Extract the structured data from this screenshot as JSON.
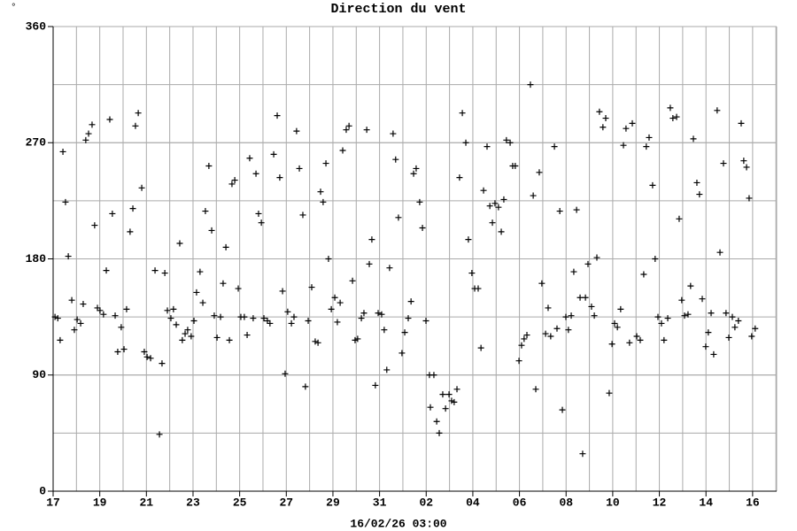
{
  "chart_data": {
    "type": "scatter",
    "title": "Direction du vent",
    "corner_symbol": "°",
    "xlabel": "16/02/26 03:00",
    "color": "#000000",
    "marker": "+",
    "grid": true,
    "x_minor_step": 1,
    "y_minor_step": 45,
    "xlim": [
      0,
      31.03
    ],
    "ylim": [
      0,
      360
    ],
    "xticks": [
      {
        "value": 0,
        "label": "17"
      },
      {
        "value": 2,
        "label": "19"
      },
      {
        "value": 4,
        "label": "21"
      },
      {
        "value": 6,
        "label": "23"
      },
      {
        "value": 8,
        "label": "25"
      },
      {
        "value": 10,
        "label": "27"
      },
      {
        "value": 12,
        "label": "29"
      },
      {
        "value": 14,
        "label": "31"
      },
      {
        "value": 16,
        "label": "02"
      },
      {
        "value": 18,
        "label": "04"
      },
      {
        "value": 20,
        "label": "06"
      },
      {
        "value": 22,
        "label": "08"
      },
      {
        "value": 24,
        "label": "10"
      },
      {
        "value": 26,
        "label": "12"
      },
      {
        "value": 28,
        "label": "14"
      },
      {
        "value": 30,
        "label": "16"
      }
    ],
    "yticks": [
      0,
      90,
      180,
      270,
      360
    ],
    "x": [
      0.08,
      0.2,
      0.3,
      0.42,
      0.53,
      0.65,
      0.8,
      0.91,
      1.03,
      1.18,
      1.29,
      1.4,
      1.52,
      1.67,
      1.78,
      1.9,
      2.01,
      2.16,
      2.28,
      2.43,
      2.54,
      2.66,
      2.77,
      2.92,
      3.04,
      3.15,
      3.3,
      3.42,
      3.53,
      3.65,
      3.8,
      3.91,
      4.03,
      4.18,
      4.37,
      4.56,
      4.67,
      4.79,
      4.9,
      5.05,
      5.16,
      5.28,
      5.43,
      5.54,
      5.66,
      5.77,
      5.92,
      6.04,
      6.15,
      6.3,
      6.42,
      6.53,
      6.68,
      6.8,
      6.91,
      7.03,
      7.18,
      7.29,
      7.41,
      7.56,
      7.67,
      7.79,
      7.94,
      8.05,
      8.2,
      8.32,
      8.43,
      8.58,
      8.7,
      8.81,
      8.93,
      9.04,
      9.19,
      9.3,
      9.46,
      9.61,
      9.72,
      9.84,
      9.95,
      10.06,
      10.22,
      10.33,
      10.44,
      10.56,
      10.71,
      10.82,
      10.94,
      11.09,
      11.24,
      11.36,
      11.47,
      11.58,
      11.7,
      11.81,
      11.93,
      12.08,
      12.19,
      12.31,
      12.42,
      12.57,
      12.69,
      12.84,
      12.95,
      13.06,
      13.22,
      13.33,
      13.45,
      13.56,
      13.67,
      13.82,
      13.94,
      14.09,
      14.2,
      14.31,
      14.43,
      14.58,
      14.69,
      14.81,
      14.96,
      15.08,
      15.23,
      15.35,
      15.46,
      15.57,
      15.72,
      15.84,
      15.99,
      16.14,
      16.18,
      16.33,
      16.45,
      16.56,
      16.71,
      16.83,
      16.98,
      17.09,
      17.2,
      17.32,
      17.43,
      17.55,
      17.7,
      17.81,
      17.96,
      18.08,
      18.23,
      18.35,
      18.46,
      18.61,
      18.73,
      18.84,
      18.95,
      19.1,
      19.22,
      19.33,
      19.44,
      19.6,
      19.71,
      19.82,
      19.98,
      20.09,
      20.2,
      20.32,
      20.47,
      20.59,
      20.7,
      20.85,
      20.96,
      21.12,
      21.23,
      21.34,
      21.5,
      21.61,
      21.73,
      21.84,
      21.99,
      22.1,
      22.22,
      22.33,
      22.45,
      22.6,
      22.71,
      22.83,
      22.94,
      23.09,
      23.21,
      23.32,
      23.43,
      23.58,
      23.7,
      23.85,
      23.97,
      24.08,
      24.2,
      24.34,
      24.46,
      24.57,
      24.72,
      24.84,
      25.03,
      25.18,
      25.33,
      25.44,
      25.56,
      25.71,
      25.82,
      25.94,
      26.09,
      26.2,
      26.36,
      26.47,
      26.58,
      26.74,
      26.85,
      26.96,
      27.08,
      27.23,
      27.34,
      27.46,
      27.61,
      27.72,
      27.84,
      27.99,
      28.1,
      28.22,
      28.33,
      28.48,
      28.6,
      28.75,
      28.86,
      28.98,
      29.13,
      29.24,
      29.39,
      29.51,
      29.62,
      29.74,
      29.85,
      29.96,
      30.11
    ],
    "values": [
      135,
      134,
      117,
      263,
      224,
      182,
      148,
      125,
      133,
      130,
      145,
      272,
      277,
      284,
      206,
      142,
      140,
      137,
      171,
      288,
      215,
      136,
      108,
      127,
      110,
      141,
      201,
      219,
      283,
      293,
      235,
      108,
      104,
      103,
      171,
      44,
      99,
      169,
      140,
      134,
      141,
      129,
      192,
      117,
      122,
      125,
      120,
      132,
      154,
      170,
      146,
      217,
      252,
      202,
      136,
      119,
      135,
      161,
      189,
      117,
      238,
      241,
      157,
      135,
      135,
      121,
      258,
      134,
      246,
      215,
      208,
      134,
      132,
      130,
      261,
      291,
      243,
      155,
      91,
      139,
      130,
      135,
      279,
      250,
      214,
      81,
      132,
      158,
      116,
      115,
      232,
      224,
      254,
      180,
      141,
      150,
      131,
      146,
      264,
      280,
      283,
      163,
      117,
      118,
      134,
      138,
      280,
      176,
      195,
      82,
      138,
      137,
      125,
      94,
      173,
      277,
      257,
      212,
      107,
      123,
      134,
      147,
      246,
      250,
      224,
      204,
      132,
      90,
      65,
      90,
      54,
      45,
      75,
      64,
      75,
      70,
      69,
      79,
      243,
      293,
      270,
      195,
      169,
      157,
      157,
      111,
      233,
      267,
      221,
      208,
      223,
      220,
      201,
      226,
      272,
      270,
      252,
      252,
      101,
      113,
      118,
      121,
      315,
      229,
      79,
      247,
      161,
      122,
      142,
      120,
      267,
      126,
      217,
      63,
      135,
      125,
      136,
      170,
      218,
      150,
      29,
      150,
      176,
      143,
      136,
      181,
      294,
      282,
      289,
      76,
      114,
      130,
      127,
      141,
      268,
      281,
      115,
      285,
      120,
      117,
      168,
      267,
      274,
      237,
      180,
      135,
      130,
      117,
      134,
      297,
      289,
      290,
      211,
      148,
      136,
      137,
      159,
      273,
      239,
      230,
      149,
      112,
      123,
      138,
      106,
      295,
      185,
      254,
      138,
      119,
      135,
      127,
      132,
      285,
      256,
      251,
      227,
      120,
      126
    ]
  }
}
